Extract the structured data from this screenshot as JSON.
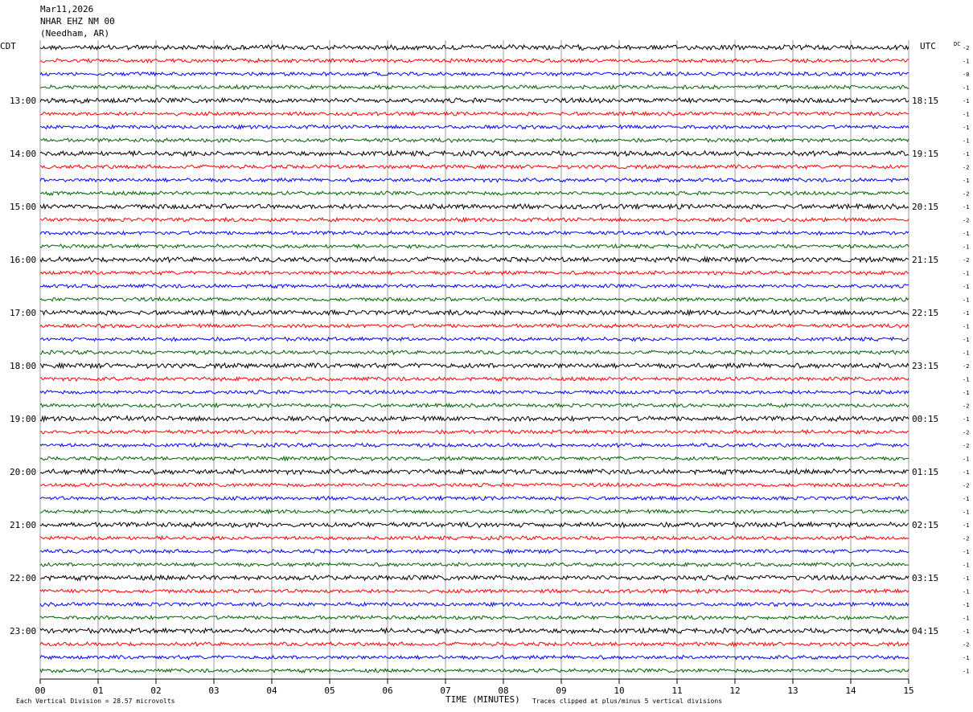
{
  "header": {
    "date": "Mar11,2026",
    "station": "NHAR EHZ NM 00",
    "location": "(Needham, AR)"
  },
  "chart_data": {
    "type": "line",
    "left_timezone": "CDT",
    "right_timezone": "UTC",
    "dc_label": "DC",
    "x_ticks": [
      "00",
      "01",
      "02",
      "03",
      "04",
      "05",
      "06",
      "07",
      "08",
      "09",
      "10",
      "11",
      "12",
      "13",
      "14",
      "15"
    ],
    "xlabel": "TIME (MINUTES)",
    "xlim": [
      0,
      15
    ],
    "left_hour_labels": [
      "13:00",
      "14:00",
      "15:00",
      "16:00",
      "17:00",
      "18:00",
      "19:00",
      "20:00",
      "21:00",
      "22:00",
      "23:00"
    ],
    "right_hour_labels": [
      "18:15",
      "19:15",
      "20:15",
      "21:15",
      "22:15",
      "23:15",
      "00:15",
      "01:15",
      "02:15",
      "03:15",
      "04:15"
    ],
    "dc_offsets": [
      "-2",
      "-1",
      "-0",
      "-1",
      "-1",
      "-1",
      "-1",
      "-1",
      "-1",
      "-2",
      "-1",
      "-2",
      "-1",
      "-2",
      "-1",
      "-1",
      "-2",
      "-1",
      "-1",
      "-1",
      "-1",
      "-1",
      "-1",
      "-1",
      "-2",
      "-1",
      "-1",
      "-2",
      "-1",
      "-2",
      "-2",
      "-1",
      "-1",
      "-2",
      "-1",
      "-1",
      "-1",
      "-2",
      "-1",
      "-1",
      "-1",
      "-1",
      "-1",
      "-1",
      "-1",
      "-2",
      "-1",
      "-1"
    ],
    "trace_colors": [
      "#000000",
      "#ff0000",
      "#0000ff",
      "#006400"
    ],
    "grid": true,
    "footer_left": "Each Vertical Division =   28.57 microvolts",
    "footer_right": "Traces clipped at plus/minus 5 vertical divisions"
  }
}
